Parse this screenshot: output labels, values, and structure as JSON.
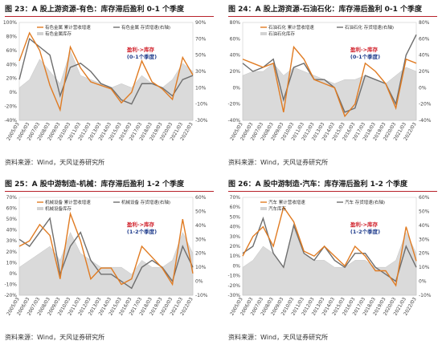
{
  "colors": {
    "title_rule": "#b8222a",
    "orange": "#e07b22",
    "gray": "#6e6e6e",
    "fill": "#d3d3d3",
    "annot_red": "#d0202a",
    "annot_blue": "#1f3c8c"
  },
  "panels": [
    {
      "title": "图 23：A 股上游资源-有色：库存滞后盈利 0-1 个季度",
      "source": "资料来源：Wind，天风证券研究所",
      "annotation": {
        "red": "盈利->库存",
        "blue": "(0-1个季度)"
      }
    },
    {
      "title": "图 24：A 股上游资源-石油石化：库存滞后盈利 0-1 个季度",
      "source": "资料来源：Wind，天风证券研究所",
      "annotation": {
        "red": "盈利->库存",
        "blue": "(0-1个季度)"
      }
    },
    {
      "title": "图 25：A 股中游制造-机械：库存滞后盈利 1-2 个季度",
      "source": "资料来源：Wind，天风证券研究所",
      "annotation": {
        "red": "盈利->库存",
        "blue": "(1-2个季度)"
      }
    },
    {
      "title": "图 26：A 股中游制造-汽车：库存滞后盈利 1-2 个季度",
      "source": "资料来源：Wind，天风证券研究所",
      "annotation": {
        "red": "盈利->库存",
        "blue": "(1-2个季度)"
      }
    }
  ],
  "chart_data": [
    {
      "type": "line",
      "x": [
        "2005/03",
        "2006/03",
        "2007/03",
        "2008/03",
        "2009/03",
        "2010/03",
        "2011/03",
        "2012/03",
        "2013/03",
        "2014/03",
        "2015/03",
        "2016/03",
        "2017/03",
        "2018/03",
        "2019/03",
        "2020/03",
        "2021/03",
        "2022/03"
      ],
      "series": [
        {
          "name": "有色金属 累计营收增速",
          "axis": "left",
          "values": [
            45,
            85,
            60,
            10,
            -25,
            65,
            35,
            15,
            10,
            5,
            -15,
            0,
            45,
            15,
            5,
            -10,
            50,
            25
          ]
        },
        {
          "name": "有色金属 存货增速(右轴)",
          "axis": "right",
          "values": [
            20,
            70,
            60,
            50,
            0,
            35,
            40,
            30,
            15,
            10,
            -5,
            -10,
            15,
            15,
            10,
            0,
            20,
            25
          ]
        },
        {
          "name": "有色金属库存",
          "axis": "right",
          "values": [
            10,
            20,
            45,
            30,
            15,
            55,
            25,
            20,
            15,
            10,
            15,
            10,
            25,
            15,
            10,
            20,
            40,
            30
          ]
        }
      ],
      "ylim_left": [
        -40,
        100
      ],
      "yticks_left": [
        -40,
        -20,
        0,
        20,
        40,
        60,
        80,
        100
      ],
      "ylim_right": [
        -30,
        90
      ],
      "yticks_right": [
        -30,
        -10,
        10,
        30,
        50,
        70,
        90
      ]
    },
    {
      "type": "line",
      "x": [
        "2005/03",
        "2006/03",
        "2007/03",
        "2008/03",
        "2009/03",
        "2010/03",
        "2011/03",
        "2012/03",
        "2013/03",
        "2014/03",
        "2015/03",
        "2016/03",
        "2017/03",
        "2018/03",
        "2019/03",
        "2020/03",
        "2021/03",
        "2022/03"
      ],
      "series": [
        {
          "name": "石油石化 累计营收增速",
          "axis": "left",
          "values": [
            35,
            30,
            25,
            30,
            -30,
            50,
            35,
            10,
            5,
            0,
            -35,
            -20,
            30,
            20,
            5,
            -25,
            35,
            30
          ]
        },
        {
          "name": "石油石化 存货增速(右轴)",
          "axis": "right",
          "values": [
            30,
            20,
            25,
            35,
            -15,
            25,
            30,
            10,
            10,
            0,
            -30,
            -25,
            15,
            10,
            5,
            -20,
            40,
            65
          ]
        },
        {
          "name": "石油石化库存",
          "axis": "right",
          "values": [
            15,
            20,
            20,
            30,
            15,
            25,
            20,
            15,
            10,
            5,
            10,
            10,
            15,
            10,
            5,
            15,
            25,
            20
          ]
        }
      ],
      "ylim_left": [
        -40,
        80
      ],
      "yticks_left": [
        -40,
        -20,
        0,
        20,
        40,
        60,
        80
      ],
      "ylim_right": [
        -40,
        80
      ],
      "yticks_right": [
        -40,
        -20,
        0,
        20,
        40,
        60,
        80
      ]
    },
    {
      "type": "line",
      "x": [
        "2005/03",
        "2006/03",
        "2007/03",
        "2008/03",
        "2009/03",
        "2010/03",
        "2011/03",
        "2012/03",
        "2013/03",
        "2014/03",
        "2015/03",
        "2016/03",
        "2017/03",
        "2018/03",
        "2019/03",
        "2020/03",
        "2021/03",
        "2022/03"
      ],
      "series": [
        {
          "name": "机械设备 累计营收增速",
          "axis": "left",
          "values": [
            25,
            30,
            45,
            35,
            -5,
            55,
            30,
            -5,
            5,
            5,
            -10,
            -5,
            25,
            15,
            5,
            -10,
            50,
            0
          ]
        },
        {
          "name": "机械设备 存货增速(右轴)",
          "axis": "right",
          "values": [
            30,
            25,
            35,
            45,
            5,
            25,
            35,
            15,
            5,
            5,
            0,
            -5,
            10,
            15,
            10,
            0,
            25,
            10
          ]
        },
        {
          "name": "机械设备库存",
          "axis": "right",
          "values": [
            10,
            15,
            20,
            25,
            15,
            35,
            20,
            15,
            10,
            10,
            10,
            5,
            15,
            10,
            10,
            15,
            35,
            20
          ]
        }
      ],
      "ylim_left": [
        -20,
        70
      ],
      "yticks_left": [
        -20,
        -10,
        0,
        10,
        20,
        30,
        40,
        50,
        60,
        70
      ],
      "ylim_right": [
        -10,
        60
      ],
      "yticks_right": [
        -10,
        0,
        10,
        20,
        30,
        40,
        50,
        60
      ]
    },
    {
      "type": "line",
      "x": [
        "2005/03",
        "2006/03",
        "2007/03",
        "2008/03",
        "2009/03",
        "2010/03",
        "2011/03",
        "2012/03",
        "2013/03",
        "2014/03",
        "2015/03",
        "2016/03",
        "2017/03",
        "2018/03",
        "2019/03",
        "2020/03",
        "2021/03",
        "2022/03"
      ],
      "series": [
        {
          "name": "汽车 累计营收增速",
          "axis": "left",
          "values": [
            10,
            30,
            40,
            20,
            60,
            45,
            15,
            10,
            20,
            10,
            0,
            20,
            10,
            -5,
            -5,
            -20,
            40,
            5
          ]
        },
        {
          "name": "汽车 存货增速(右轴)",
          "axis": "right",
          "values": [
            20,
            25,
            45,
            20,
            10,
            40,
            20,
            15,
            25,
            15,
            10,
            20,
            20,
            10,
            5,
            0,
            25,
            10
          ]
        },
        {
          "name": "汽车库存",
          "axis": "right",
          "values": [
            10,
            15,
            25,
            20,
            10,
            40,
            20,
            15,
            15,
            10,
            10,
            15,
            15,
            10,
            10,
            15,
            35,
            20
          ]
        }
      ],
      "ylim_left": [
        -30,
        70
      ],
      "yticks_left": [
        -30,
        -20,
        -10,
        0,
        10,
        20,
        30,
        40,
        50,
        60,
        70
      ],
      "ylim_right": [
        -10,
        60
      ],
      "yticks_right": [
        -10,
        0,
        10,
        20,
        30,
        40,
        50,
        60
      ]
    }
  ]
}
